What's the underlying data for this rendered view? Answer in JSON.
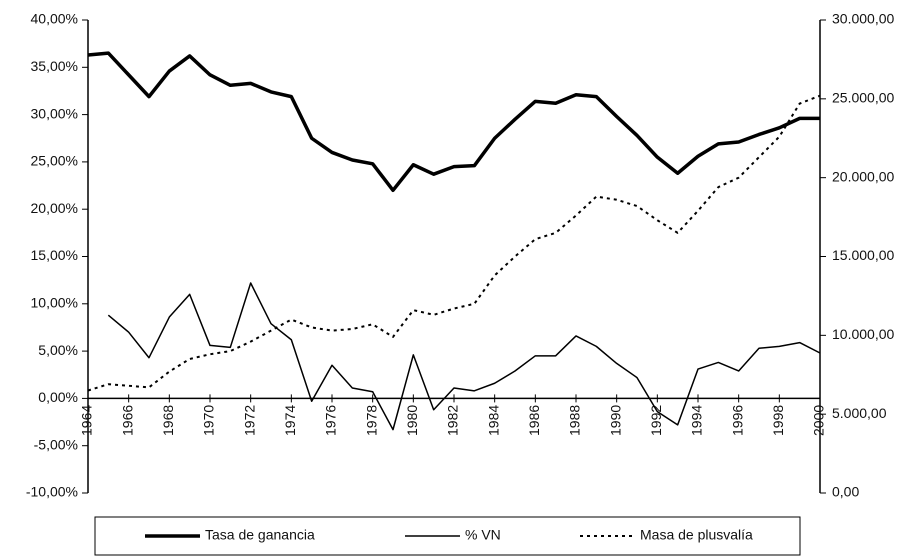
{
  "chart_data": {
    "type": "line",
    "x": [
      1964,
      1965,
      1966,
      1967,
      1968,
      1969,
      1970,
      1971,
      1972,
      1973,
      1974,
      1975,
      1976,
      1977,
      1978,
      1979,
      1980,
      1981,
      1982,
      1983,
      1984,
      1985,
      1986,
      1987,
      1988,
      1989,
      1990,
      1991,
      1992,
      1993,
      1994,
      1995,
      1996,
      1997,
      1998,
      1999,
      2000
    ],
    "series": [
      {
        "name": "Tasa de ganancia",
        "color": "#000000",
        "values": [
          36.3,
          36.5,
          34.2,
          31.9,
          34.6,
          36.2,
          34.2,
          33.1,
          33.3,
          32.4,
          31.9,
          27.5,
          26.0,
          25.2,
          24.8,
          22.0,
          24.7,
          23.7,
          24.5,
          24.6,
          27.5,
          29.5,
          31.4,
          31.2,
          32.1,
          31.9,
          29.8,
          27.8,
          25.5,
          23.8,
          25.6,
          26.9,
          27.1,
          27.9,
          28.6,
          29.6,
          29.6
        ]
      },
      {
        "name": "% VN",
        "color": "#000000",
        "values": [
          null,
          8.8,
          7.0,
          4.3,
          8.6,
          11.0,
          5.6,
          5.4,
          12.2,
          7.9,
          6.2,
          -0.3,
          3.5,
          1.1,
          0.7,
          -3.3,
          4.6,
          -1.2,
          1.1,
          0.8,
          1.6,
          2.9,
          4.5,
          4.5,
          6.6,
          5.5,
          3.7,
          2.2,
          -1.4,
          -2.8,
          3.1,
          3.8,
          2.9,
          5.3,
          5.5,
          5.9,
          4.8
        ]
      },
      {
        "name": "Masa de plusvalía",
        "color": "#000000",
        "axis": "y2",
        "values": [
          6500,
          6900,
          6800,
          6700,
          7700,
          8500,
          8800,
          9000,
          9600,
          10300,
          11000,
          10500,
          10300,
          10400,
          10700,
          9900,
          11600,
          11300,
          11700,
          12000,
          13800,
          15000,
          16100,
          16500,
          17600,
          18800,
          18600,
          18200,
          17300,
          16500,
          17900,
          19400,
          20000,
          21300,
          22600,
          24700,
          25200
        ]
      }
    ],
    "xlim": [
      1964,
      2000
    ],
    "xticks": [
      1964,
      1966,
      1968,
      1970,
      1972,
      1974,
      1976,
      1978,
      1980,
      1982,
      1984,
      1986,
      1988,
      1990,
      1992,
      1994,
      1996,
      1998,
      2000
    ],
    "ylim": [
      -10,
      40
    ],
    "yticks": [
      {
        "value": -10,
        "label": "-10,00%"
      },
      {
        "value": -5,
        "label": "-5,00%"
      },
      {
        "value": 0,
        "label": "0,00%"
      },
      {
        "value": 5,
        "label": "5,00%"
      },
      {
        "value": 10,
        "label": "10,00%"
      },
      {
        "value": 15,
        "label": "15,00%"
      },
      {
        "value": 20,
        "label": "20,00%"
      },
      {
        "value": 25,
        "label": "25,00%"
      },
      {
        "value": 30,
        "label": "30,00%"
      },
      {
        "value": 35,
        "label": "35,00%"
      },
      {
        "value": 40,
        "label": "40,00%"
      }
    ],
    "y2lim": [
      0,
      30000
    ],
    "y2ticks": [
      {
        "value": 0,
        "label": "0,00"
      },
      {
        "value": 5000,
        "label": "5.000,00"
      },
      {
        "value": 10000,
        "label": "10.000,00"
      },
      {
        "value": 15000,
        "label": "15.000,00"
      },
      {
        "value": 20000,
        "label": "20.000,00"
      },
      {
        "value": 25000,
        "label": "25.000,00"
      },
      {
        "value": 30000,
        "label": "30.000,00"
      }
    ],
    "legend": "bottom"
  }
}
